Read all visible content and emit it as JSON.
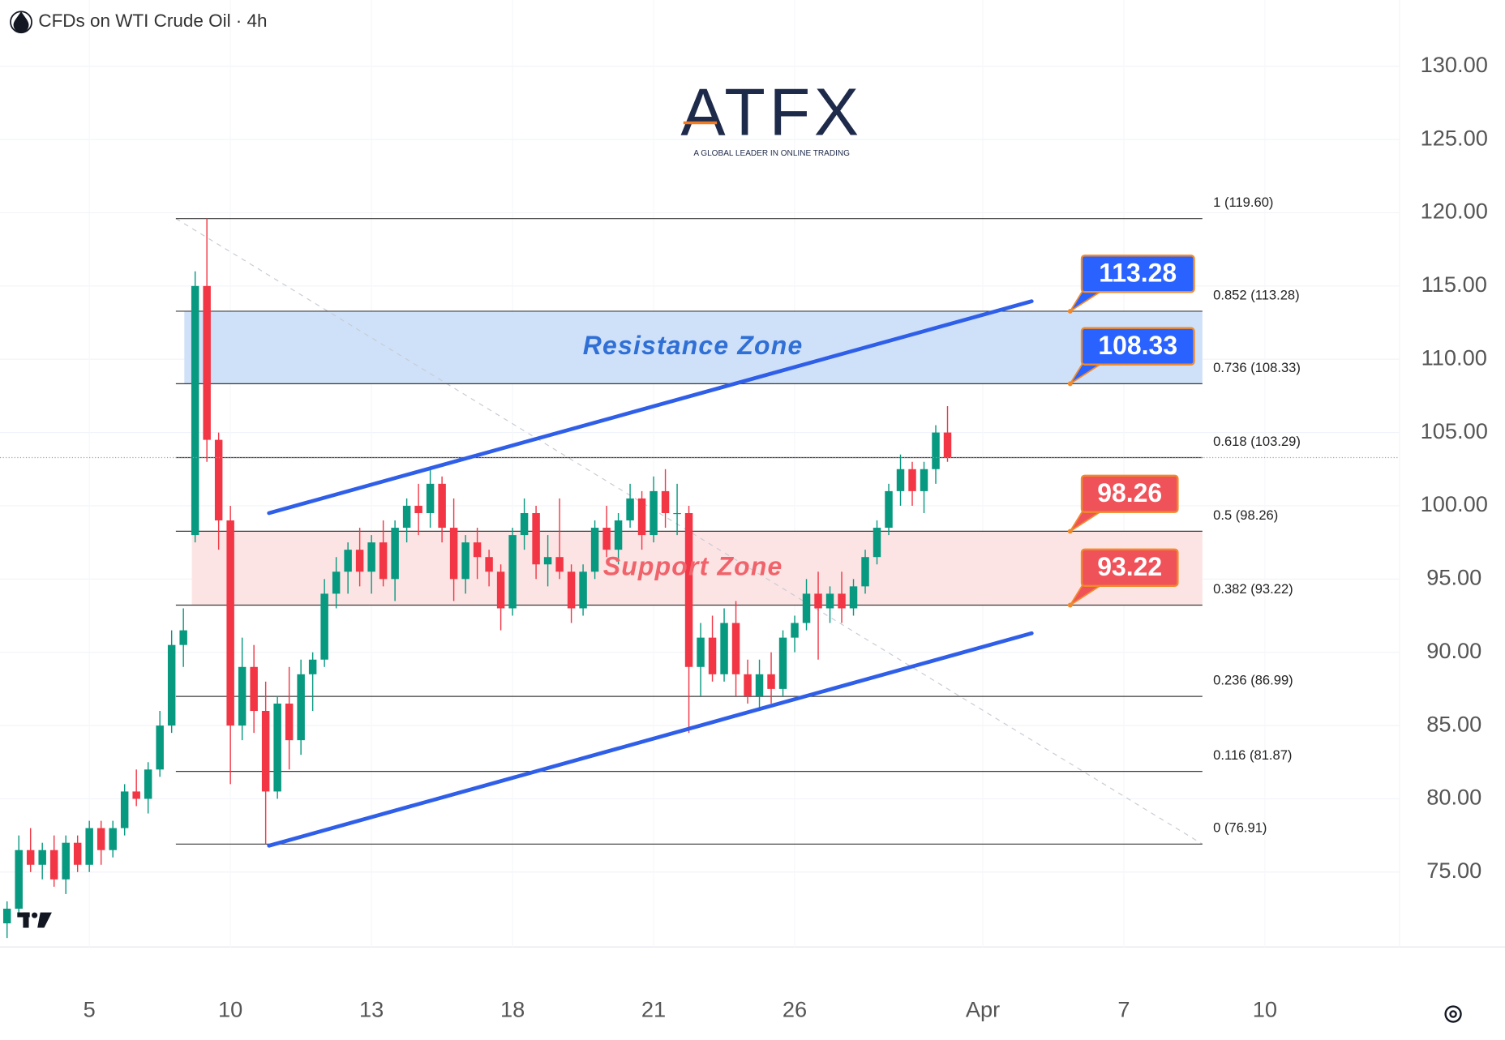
{
  "chart_data": {
    "type": "candlestick",
    "title": "CFDs on WTI Crude Oil · 4h",
    "logo": "ATFX",
    "tagline": "A GLOBAL LEADER IN ONLINE TRADING",
    "up_color": "#089981",
    "down_color": "#f23645",
    "grid": true,
    "xlim": [
      -1.9,
      27.86
    ],
    "ylim": [
      69.89,
      134.52
    ],
    "xticks": [
      {
        "value": 0,
        "label": "5"
      },
      {
        "value": 3,
        "label": "10"
      },
      {
        "value": 6,
        "label": "13"
      },
      {
        "value": 9,
        "label": "18"
      },
      {
        "value": 12,
        "label": "21"
      },
      {
        "value": 15,
        "label": "26"
      },
      {
        "value": 19,
        "label": "Apr"
      },
      {
        "value": 22,
        "label": "7"
      },
      {
        "value": 25,
        "label": "10"
      }
    ],
    "yticks": [
      {
        "value": 75,
        "label": "75.00"
      },
      {
        "value": 80,
        "label": "80.00"
      },
      {
        "value": 85,
        "label": "85.00"
      },
      {
        "value": 90,
        "label": "90.00"
      },
      {
        "value": 95,
        "label": "95.00"
      },
      {
        "value": 100,
        "label": "100.00"
      },
      {
        "value": 105,
        "label": "105.00"
      },
      {
        "value": 110,
        "label": "110.00"
      },
      {
        "value": 115,
        "label": "115.00"
      },
      {
        "value": 120,
        "label": "120.00"
      },
      {
        "value": 125,
        "label": "125.00"
      },
      {
        "value": 130,
        "label": "130.00"
      }
    ],
    "x": [
      -1.75,
      -1.5,
      -1.25,
      -1,
      -0.75,
      -0.5,
      -0.25,
      0,
      0.25,
      0.5,
      0.75,
      1,
      1.25,
      1.5,
      1.75,
      2,
      2.25,
      2.5,
      2.75,
      3,
      3.25,
      3.5,
      3.75,
      4,
      4.25,
      4.5,
      4.75,
      5,
      5.25,
      5.5,
      5.75,
      6,
      6.25,
      6.5,
      6.75,
      7,
      7.25,
      7.5,
      7.75,
      8,
      8.25,
      8.5,
      8.75,
      9,
      9.25,
      9.5,
      9.75,
      10,
      10.25,
      10.5,
      10.75,
      11,
      11.25,
      11.5,
      11.75,
      12,
      12.25,
      12.5,
      12.75,
      13,
      13.25,
      13.5,
      13.75,
      14,
      14.25,
      14.5,
      14.75,
      15,
      15.25,
      15.5,
      15.75,
      16,
      16.25,
      16.5,
      16.75,
      17,
      17.25,
      17.5,
      17.75,
      18,
      18.25
    ],
    "open": [
      71.5,
      72.5,
      76.5,
      75.5,
      76.5,
      74.5,
      77,
      75.5,
      78,
      76.5,
      78,
      80.5,
      80,
      82,
      85,
      90.5,
      98,
      115,
      104.5,
      99,
      85,
      89,
      86,
      80.5,
      86.5,
      84,
      88.5,
      89.5,
      94,
      95.5,
      97,
      95.5,
      97.5,
      95,
      98.5,
      100,
      99.5,
      101.5,
      98.5,
      95,
      97.5,
      96.5,
      95.5,
      93,
      98,
      99.5,
      96,
      96.5,
      95.5,
      93,
      95.5,
      98.5,
      97,
      99,
      100.5,
      98,
      101,
      99.5,
      99.5,
      89,
      91,
      88.5,
      92,
      88.5,
      87,
      88.5,
      87.5,
      91,
      92,
      94,
      93,
      94,
      93,
      94.5,
      96.5,
      98.5,
      101,
      102.5,
      101,
      102.5,
      105
    ],
    "high": [
      73,
      77.5,
      78,
      77,
      77.5,
      77.5,
      77.5,
      78.5,
      78.5,
      78.5,
      81,
      82,
      82.5,
      86,
      91.5,
      93,
      116,
      119.6,
      105,
      100,
      91,
      90.5,
      88,
      87,
      89,
      89.5,
      90,
      95,
      96.5,
      97.5,
      98.5,
      98,
      99,
      99,
      100.5,
      101.5,
      102.5,
      102,
      100.5,
      98,
      98.5,
      97,
      96,
      98.5,
      100.5,
      100,
      98,
      100.5,
      96,
      96,
      99,
      100,
      99.5,
      101.5,
      101,
      102,
      102.5,
      101.5,
      100,
      92,
      92.5,
      93,
      93.5,
      89.5,
      89.5,
      90,
      91.5,
      92.5,
      95,
      95.5,
      94.5,
      95.5,
      95,
      97,
      99,
      101.5,
      103.5,
      103,
      103,
      105.5,
      106.8
    ],
    "low": [
      70.5,
      72,
      75,
      74.5,
      74,
      73.5,
      75,
      75,
      75.5,
      76,
      77.5,
      79.5,
      79,
      81.5,
      84.5,
      89,
      97.5,
      103,
      97,
      81,
      84,
      84.5,
      76.91,
      80,
      82,
      83,
      86,
      89,
      93,
      94,
      94.5,
      94,
      94.5,
      93.5,
      97.5,
      98,
      98.5,
      97.5,
      93.5,
      94,
      95,
      94.5,
      91.5,
      92.5,
      97,
      95,
      94.5,
      95,
      92,
      92.5,
      95,
      96.5,
      96,
      98.5,
      97,
      97.5,
      98.5,
      98,
      84.5,
      87,
      88,
      88,
      87,
      86.5,
      86,
      86.5,
      87,
      90,
      91.5,
      89.5,
      92,
      92,
      92.5,
      94,
      96,
      98,
      100,
      100,
      99.5,
      101.5,
      103
    ],
    "close": [
      72.5,
      76.5,
      75.5,
      76.5,
      74.5,
      77,
      75.5,
      78,
      76.5,
      78,
      80.5,
      80,
      82,
      85,
      90.5,
      91.5,
      115,
      104.5,
      99,
      85,
      89,
      86,
      80.5,
      86.5,
      84,
      88.5,
      89.5,
      94,
      95.5,
      97,
      95.5,
      97.5,
      95,
      98.5,
      100,
      99.5,
      101.5,
      98.5,
      95,
      97.5,
      96.5,
      95.5,
      93,
      98,
      99.5,
      96,
      96.5,
      95.5,
      93,
      95.5,
      98.5,
      97,
      99,
      100.5,
      98,
      101,
      99.5,
      99.5,
      89,
      91,
      88.5,
      92,
      88.5,
      87,
      88.5,
      87.5,
      91,
      92,
      94,
      93,
      94,
      93,
      94.5,
      96.5,
      98.5,
      101,
      102.5,
      101,
      102.5,
      105,
      103.29
    ],
    "fib_range": [
      1.84,
      23.67
    ],
    "fib_levels": [
      {
        "label": "1 (119.60)",
        "value": 119.6
      },
      {
        "label": "0.852 (113.28)",
        "value": 113.28
      },
      {
        "label": "0.736 (108.33)",
        "value": 108.33
      },
      {
        "label": "0.618 (103.29)",
        "value": 103.29
      },
      {
        "label": "0.5 (98.26)",
        "value": 98.26
      },
      {
        "label": "0.382 (93.22)",
        "value": 93.22
      },
      {
        "label": "0.236 (86.99)",
        "value": 86.99
      },
      {
        "label": "0.116 (81.87)",
        "value": 81.87
      },
      {
        "label": "0 (76.91)",
        "value": 76.91
      }
    ],
    "zones": [
      {
        "label": "Resistance Zone",
        "range": [
          108.33,
          113.28
        ],
        "start": 2.02,
        "color": "#cfe1f8",
        "text_color": "#2f6fd6"
      },
      {
        "label": "Support Zone",
        "range": [
          93.22,
          98.26
        ],
        "start": 2.18,
        "color": "#fde4e4",
        "text_color": "#f0636b"
      }
    ],
    "callouts": [
      {
        "value": 113.28,
        "color": "#2962ff"
      },
      {
        "value": 108.33,
        "color": "#2962ff"
      },
      {
        "value": 98.26,
        "color": "#f0525a"
      },
      {
        "value": 93.22,
        "color": "#f0525a"
      }
    ],
    "trend_lines": [
      {
        "x": [
          3.82,
          20.04
        ],
        "y": [
          99.5,
          113.96
        ],
        "color": "#2f5fe8"
      },
      {
        "x": [
          3.82,
          20.04
        ],
        "y": [
          76.8,
          91.3
        ],
        "color": "#2f5fe8"
      }
    ],
    "fib_trend": {
      "x": [
        1.84,
        23.67
      ],
      "y": [
        119.6,
        76.91
      ]
    }
  }
}
